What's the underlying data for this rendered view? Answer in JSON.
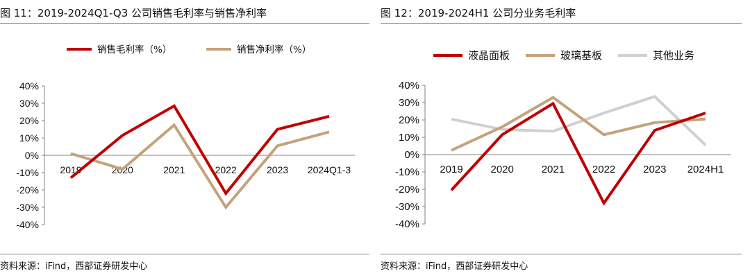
{
  "charts": [
    {
      "title": "图 11：2019-2024Q1-Q3 公司销售毛利率与销售净利率",
      "source": "资料来源：iFind，西部证券研发中心"
    },
    {
      "title": "图 12：2019-2024H1 公司分业务毛利率",
      "source": "资料来源：iFind，西部证券研发中心"
    }
  ],
  "colors": {
    "red": "#c00000",
    "tan": "#c4a27c",
    "gray": "#d0d0d0",
    "axis": "#808080"
  },
  "chart_data": [
    {
      "type": "line",
      "title": "",
      "xlabel": "",
      "ylabel": "",
      "categories": [
        "2019",
        "2020",
        "2021",
        "2022",
        "2023",
        "2024Q1-3"
      ],
      "ylim": [
        -40,
        40
      ],
      "yticks": [
        "40%",
        "30%",
        "20%",
        "10%",
        "0%",
        "-10%",
        "-20%",
        "-30%",
        "-40%"
      ],
      "legend_position": "top",
      "grid": false,
      "series": [
        {
          "name": "销售毛利率（%）",
          "color": "#c00000",
          "values": [
            -13,
            11.5,
            28.5,
            -22,
            15,
            22.5
          ]
        },
        {
          "name": "销售净利率（%）",
          "color": "#c4a27c",
          "values": [
            1,
            -8,
            17.5,
            -30,
            5.5,
            13.5
          ]
        }
      ]
    },
    {
      "type": "line",
      "title": "",
      "xlabel": "",
      "ylabel": "",
      "categories": [
        "2019",
        "2020",
        "2021",
        "2022",
        "2023",
        "2024H1"
      ],
      "ylim": [
        -40,
        40
      ],
      "yticks": [
        "40%",
        "30%",
        "20%",
        "10%",
        "0%",
        "-10%",
        "-20%",
        "-30%",
        "-40%"
      ],
      "legend_position": "top",
      "grid": false,
      "series": [
        {
          "name": "液晶面板",
          "color": "#c00000",
          "values": [
            -20.5,
            11.5,
            29.5,
            -28,
            14,
            24
          ]
        },
        {
          "name": "玻璃基板",
          "color": "#c4a27c",
          "values": [
            2.5,
            16,
            33,
            11.5,
            18.5,
            20.5
          ]
        },
        {
          "name": "其他业务",
          "color": "#d0d0d0",
          "values": [
            20.5,
            14.5,
            13.5,
            24,
            33.5,
            5.5
          ]
        }
      ]
    }
  ]
}
